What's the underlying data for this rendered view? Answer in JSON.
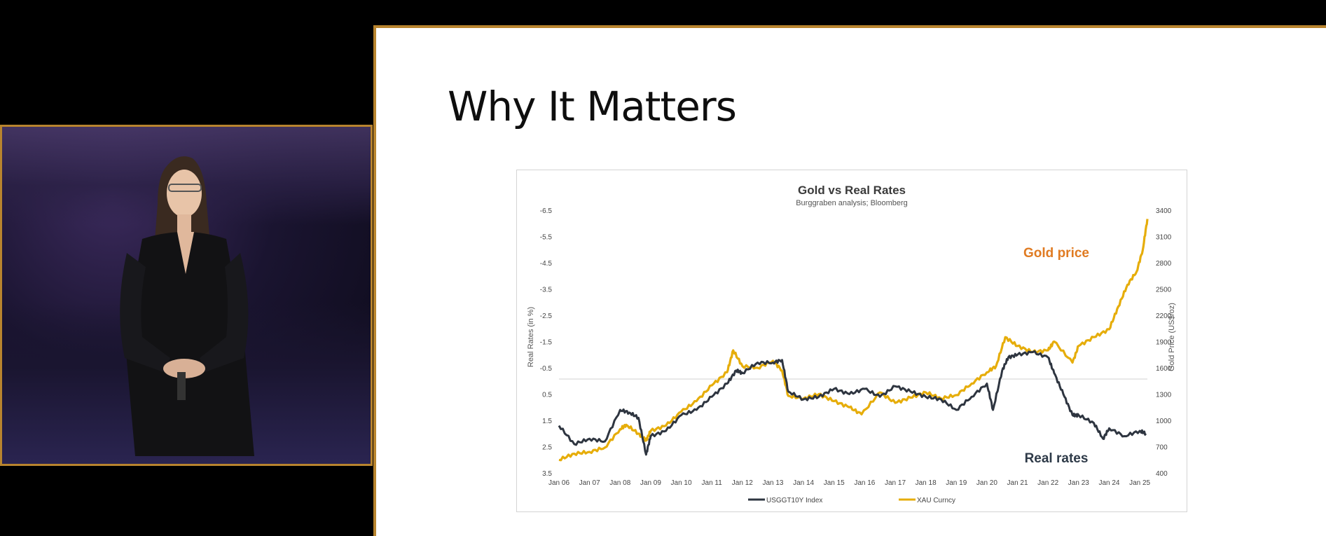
{
  "slide": {
    "title": "Why It Matters"
  },
  "chart_data": {
    "type": "line",
    "title": "Gold  vs Real Rates",
    "subtitle": "Burggraben analysis; Bloomberg",
    "ylabel_left": "Real Rates (in %)",
    "ylabel_right": "Gold Price (US$/oz)",
    "left_axis": {
      "ticks": [
        -6.5,
        -5.5,
        -4.5,
        -3.5,
        -2.5,
        -1.5,
        -0.5,
        0.5,
        1.5,
        2.5,
        3.5
      ],
      "range": [
        -6.5,
        3.5
      ],
      "inverted": true
    },
    "right_axis": {
      "ticks": [
        400,
        700,
        1000,
        1300,
        1600,
        1900,
        2200,
        2500,
        2800,
        3100,
        3400
      ],
      "range": [
        400,
        3400
      ]
    },
    "x": [
      "Jan 06",
      "Jan 07",
      "Jan 08",
      "Jan 09",
      "Jan 10",
      "Jan 11",
      "Jan 12",
      "Jan 13",
      "Jan 14",
      "Jan 15",
      "Jan 16",
      "Jan 17",
      "Jan 18",
      "Jan 19",
      "Jan 20",
      "Jan 21",
      "Jan 22",
      "Jan 23",
      "Jan 24",
      "Jan 25"
    ],
    "annotations": {
      "gold": "Gold price",
      "rates": "Real rates"
    },
    "legend_position": "bottom",
    "series": [
      {
        "name": "USGGT10Y Index",
        "axis": "left",
        "color": "#2e3540",
        "x": [
          2006.0,
          2006.5,
          2007.0,
          2007.5,
          2008.0,
          2008.3,
          2008.6,
          2008.85,
          2009.0,
          2009.5,
          2010.0,
          2010.5,
          2011.0,
          2011.5,
          2011.8,
          2012.0,
          2012.5,
          2013.0,
          2013.3,
          2013.5,
          2014.0,
          2014.5,
          2015.0,
          2015.5,
          2016.0,
          2016.5,
          2017.0,
          2017.5,
          2018.0,
          2018.5,
          2019.0,
          2019.5,
          2020.0,
          2020.2,
          2020.5,
          2020.7,
          2021.0,
          2021.5,
          2022.0,
          2022.2,
          2022.5,
          2022.8,
          2023.0,
          2023.5,
          2023.8,
          2024.0,
          2024.5,
          2025.0,
          2025.2
        ],
        "values": [
          1.7,
          2.4,
          2.2,
          2.3,
          1.1,
          1.2,
          1.4,
          2.8,
          2.1,
          1.9,
          1.3,
          1.1,
          0.6,
          0.1,
          -0.4,
          -0.3,
          -0.7,
          -0.7,
          -0.8,
          0.4,
          0.7,
          0.6,
          0.3,
          0.5,
          0.3,
          0.6,
          0.2,
          0.4,
          0.6,
          0.7,
          1.1,
          0.6,
          0.1,
          1.1,
          -0.4,
          -0.9,
          -1.0,
          -1.1,
          -0.9,
          -0.3,
          0.5,
          1.3,
          1.3,
          1.6,
          2.2,
          1.8,
          2.1,
          1.9,
          2.0
        ]
      },
      {
        "name": "XAU Curncy",
        "axis": "right",
        "color": "#e6ad0a",
        "x": [
          2006.0,
          2006.5,
          2007.0,
          2007.5,
          2008.0,
          2008.2,
          2008.6,
          2008.85,
          2009.0,
          2009.5,
          2010.0,
          2010.5,
          2011.0,
          2011.5,
          2011.7,
          2012.0,
          2012.5,
          2013.0,
          2013.3,
          2013.5,
          2014.0,
          2014.5,
          2015.0,
          2015.5,
          2015.9,
          2016.5,
          2017.0,
          2017.5,
          2018.0,
          2018.5,
          2019.0,
          2019.5,
          2020.0,
          2020.3,
          2020.6,
          2021.0,
          2021.5,
          2022.0,
          2022.2,
          2022.8,
          2023.0,
          2023.5,
          2024.0,
          2024.3,
          2024.6,
          2024.9,
          2025.1,
          2025.25
        ],
        "values": [
          550,
          620,
          640,
          690,
          900,
          950,
          850,
          770,
          880,
          940,
          1100,
          1220,
          1400,
          1550,
          1800,
          1620,
          1600,
          1680,
          1570,
          1280,
          1250,
          1300,
          1220,
          1150,
          1070,
          1320,
          1200,
          1260,
          1320,
          1250,
          1290,
          1420,
          1550,
          1620,
          1950,
          1850,
          1780,
          1800,
          1900,
          1660,
          1850,
          1950,
          2040,
          2300,
          2550,
          2700,
          2950,
          3300
        ]
      }
    ]
  }
}
